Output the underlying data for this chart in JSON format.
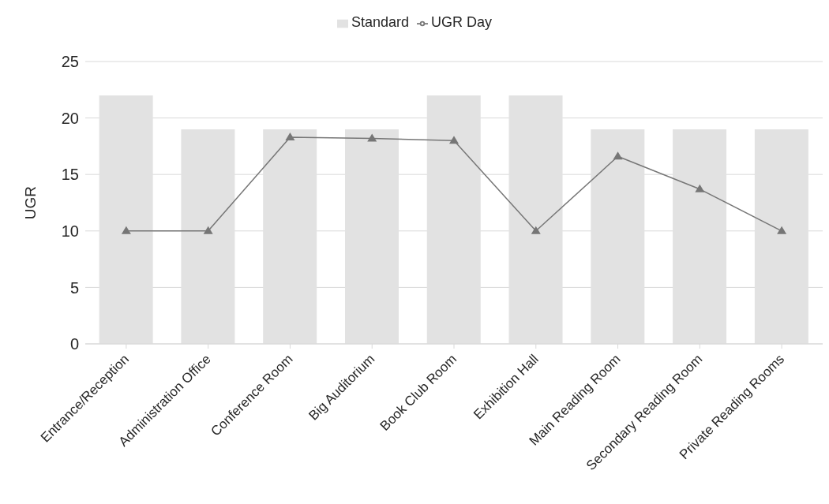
{
  "chart_data": {
    "type": "bar",
    "ylabel": "UGR",
    "categories": [
      "Entrance/Reception",
      "Administration Office",
      "Conference Room",
      "Big Auditorium",
      "Book Club Room",
      "Exhibition Hall",
      "Main Reading Room",
      "Secondary Reading Room",
      "Private Reading Rooms"
    ],
    "series": [
      {
        "name": "Standard",
        "color": "#e2e2e2",
        "values": [
          22,
          19,
          19,
          19,
          22,
          22,
          19,
          19,
          19
        ]
      },
      {
        "name": "UGR Day",
        "type": "line",
        "color": "#767676",
        "marker": "triangle",
        "values": [
          10,
          10,
          18.3,
          18.2,
          18,
          10,
          16.6,
          13.7,
          10
        ]
      }
    ],
    "ylim": [
      0,
      25
    ],
    "yticks": [
      0,
      5,
      10,
      15,
      20,
      25
    ],
    "grid": "y",
    "legend": "top"
  }
}
